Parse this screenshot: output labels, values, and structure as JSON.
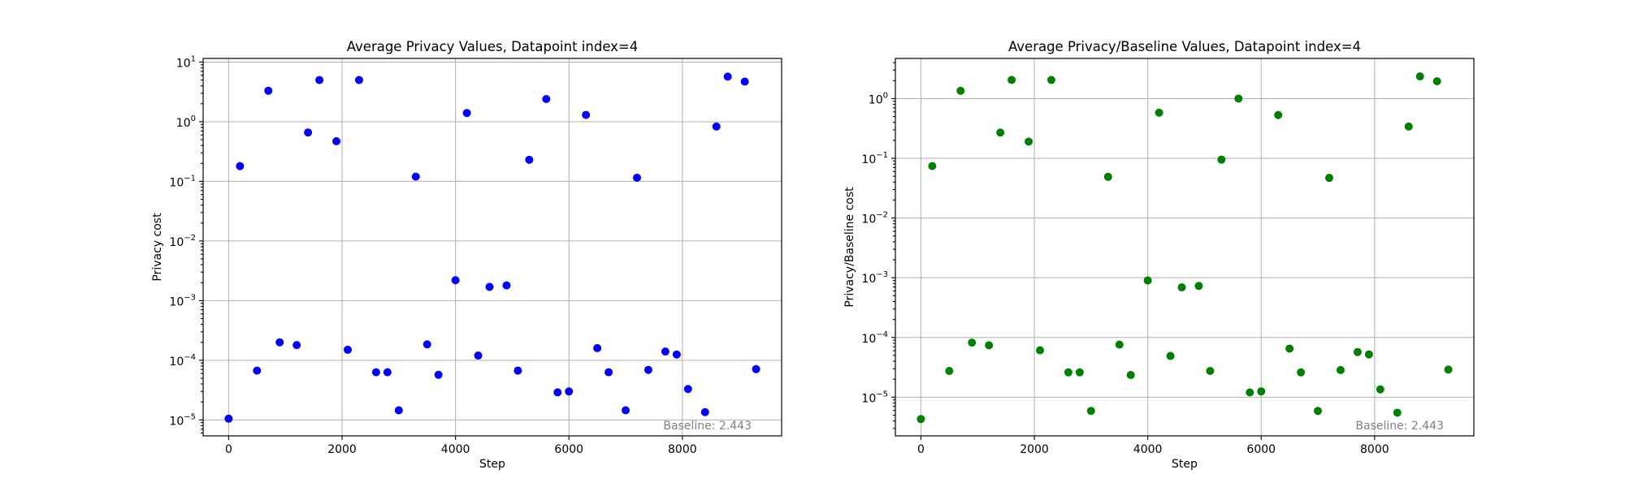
{
  "chart_data": [
    {
      "type": "scatter",
      "title": "Average Privacy Values, Datapoint index=4",
      "xlabel": "Step",
      "ylabel": "Privacy cost",
      "yscale": "log",
      "xlim": [
        -450,
        9750
      ],
      "ylim": [
        5.4e-06,
        11.5
      ],
      "xticks": [
        0,
        2000,
        4000,
        6000,
        8000
      ],
      "yticks": [
        1e-05,
        0.0001,
        0.001,
        0.01,
        0.1,
        1,
        10
      ],
      "ytick_labels": [
        {
          "base": "10",
          "exp": "−5"
        },
        {
          "base": "10",
          "exp": "−4"
        },
        {
          "base": "10",
          "exp": "−3"
        },
        {
          "base": "10",
          "exp": "−2"
        },
        {
          "base": "10",
          "exp": "−1"
        },
        {
          "base": "10",
          "exp": "0"
        },
        {
          "base": "10",
          "exp": "1"
        }
      ],
      "grid": true,
      "color": "#0000ff",
      "annotation": "Baseline: 2.443",
      "points": [
        {
          "x": 0,
          "y": 1.05e-05
        },
        {
          "x": 200,
          "y": 0.18
        },
        {
          "x": 500,
          "y": 6.7e-05
        },
        {
          "x": 700,
          "y": 3.3
        },
        {
          "x": 900,
          "y": 0.0002
        },
        {
          "x": 1200,
          "y": 0.00018
        },
        {
          "x": 1400,
          "y": 0.66
        },
        {
          "x": 1600,
          "y": 5.0
        },
        {
          "x": 1900,
          "y": 0.47
        },
        {
          "x": 2100,
          "y": 0.00015
        },
        {
          "x": 2300,
          "y": 5.0
        },
        {
          "x": 2600,
          "y": 6.3e-05
        },
        {
          "x": 2800,
          "y": 6.3e-05
        },
        {
          "x": 3000,
          "y": 1.45e-05
        },
        {
          "x": 3300,
          "y": 0.12
        },
        {
          "x": 3500,
          "y": 0.000185
        },
        {
          "x": 3700,
          "y": 5.7e-05
        },
        {
          "x": 4000,
          "y": 0.0022
        },
        {
          "x": 4200,
          "y": 1.4
        },
        {
          "x": 4400,
          "y": 0.00012
        },
        {
          "x": 4600,
          "y": 0.0017
        },
        {
          "x": 4900,
          "y": 0.0018
        },
        {
          "x": 5100,
          "y": 6.7e-05
        },
        {
          "x": 5300,
          "y": 0.23
        },
        {
          "x": 5600,
          "y": 2.4
        },
        {
          "x": 5800,
          "y": 2.9e-05
        },
        {
          "x": 6000,
          "y": 3e-05
        },
        {
          "x": 6300,
          "y": 1.3
        },
        {
          "x": 6500,
          "y": 0.00016
        },
        {
          "x": 6700,
          "y": 6.3e-05
        },
        {
          "x": 7000,
          "y": 1.45e-05
        },
        {
          "x": 7200,
          "y": 0.115
        },
        {
          "x": 7400,
          "y": 6.9e-05
        },
        {
          "x": 7700,
          "y": 0.00014
        },
        {
          "x": 7900,
          "y": 0.000125
        },
        {
          "x": 8100,
          "y": 3.3e-05
        },
        {
          "x": 8400,
          "y": 1.35e-05
        },
        {
          "x": 8600,
          "y": 0.83
        },
        {
          "x": 8800,
          "y": 5.7
        },
        {
          "x": 9100,
          "y": 4.7
        },
        {
          "x": 9300,
          "y": 7.1e-05
        }
      ]
    },
    {
      "type": "scatter",
      "title": "Average Privacy/Baseline Values, Datapoint index=4",
      "xlabel": "Step",
      "ylabel": "Privacy/Baseline cost",
      "yscale": "log",
      "xlim": [
        -450,
        9750
      ],
      "ylim": [
        2.25e-06,
        4.7
      ],
      "xticks": [
        0,
        2000,
        4000,
        6000,
        8000
      ],
      "yticks": [
        1e-05,
        0.0001,
        0.001,
        0.01,
        0.1,
        1
      ],
      "ytick_labels": [
        {
          "base": "10",
          "exp": "−5"
        },
        {
          "base": "10",
          "exp": "−4"
        },
        {
          "base": "10",
          "exp": "−3"
        },
        {
          "base": "10",
          "exp": "−2"
        },
        {
          "base": "10",
          "exp": "−1"
        },
        {
          "base": "10",
          "exp": "0"
        }
      ],
      "grid": true,
      "color": "#008000",
      "annotation": "Baseline: 2.443",
      "points": [
        {
          "x": 0,
          "y": 4.3e-06
        },
        {
          "x": 200,
          "y": 0.074
        },
        {
          "x": 500,
          "y": 2.75e-05
        },
        {
          "x": 700,
          "y": 1.35
        },
        {
          "x": 900,
          "y": 8.2e-05
        },
        {
          "x": 1200,
          "y": 7.4e-05
        },
        {
          "x": 1400,
          "y": 0.27
        },
        {
          "x": 1600,
          "y": 2.05
        },
        {
          "x": 1900,
          "y": 0.19
        },
        {
          "x": 2100,
          "y": 6.1e-05
        },
        {
          "x": 2300,
          "y": 2.05
        },
        {
          "x": 2600,
          "y": 2.6e-05
        },
        {
          "x": 2800,
          "y": 2.6e-05
        },
        {
          "x": 3000,
          "y": 5.9e-06
        },
        {
          "x": 3300,
          "y": 0.049
        },
        {
          "x": 3500,
          "y": 7.6e-05
        },
        {
          "x": 3700,
          "y": 2.35e-05
        },
        {
          "x": 4000,
          "y": 0.0009
        },
        {
          "x": 4200,
          "y": 0.58
        },
        {
          "x": 4400,
          "y": 4.9e-05
        },
        {
          "x": 4600,
          "y": 0.00069
        },
        {
          "x": 4900,
          "y": 0.00073
        },
        {
          "x": 5100,
          "y": 2.75e-05
        },
        {
          "x": 5300,
          "y": 0.095
        },
        {
          "x": 5600,
          "y": 1.0
        },
        {
          "x": 5800,
          "y": 1.2e-05
        },
        {
          "x": 6000,
          "y": 1.25e-05
        },
        {
          "x": 6300,
          "y": 0.53
        },
        {
          "x": 6500,
          "y": 6.5e-05
        },
        {
          "x": 6700,
          "y": 2.6e-05
        },
        {
          "x": 7000,
          "y": 5.9e-06
        },
        {
          "x": 7200,
          "y": 0.047
        },
        {
          "x": 7400,
          "y": 2.85e-05
        },
        {
          "x": 7700,
          "y": 5.7e-05
        },
        {
          "x": 7900,
          "y": 5.2e-05
        },
        {
          "x": 8100,
          "y": 1.35e-05
        },
        {
          "x": 8400,
          "y": 5.5e-06
        },
        {
          "x": 8600,
          "y": 0.34
        },
        {
          "x": 8800,
          "y": 2.35
        },
        {
          "x": 9100,
          "y": 1.95
        },
        {
          "x": 9300,
          "y": 2.9e-05
        }
      ]
    }
  ]
}
